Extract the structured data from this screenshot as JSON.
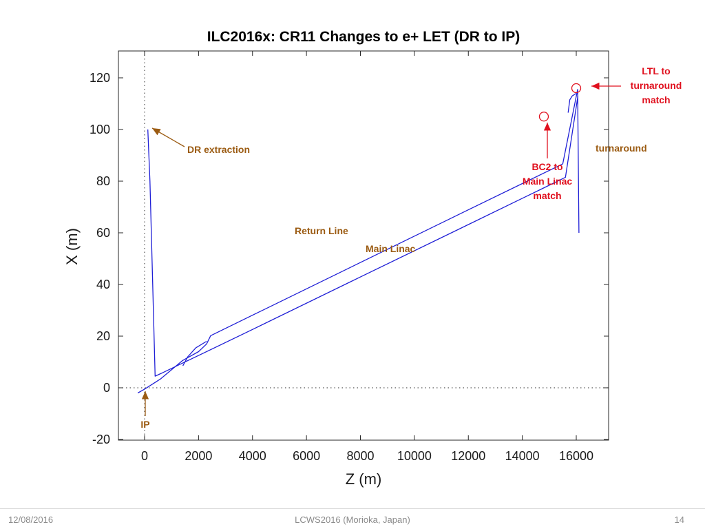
{
  "colors": {
    "trace": "#1f1fd6",
    "brown": "#9b5b12",
    "red": "#e0101e",
    "axis": "#262626"
  },
  "footer": {
    "date": "12/08/2016",
    "conference": "LCWS2016 (Morioka, Japan)",
    "page": "14"
  },
  "chart_data": {
    "type": "line",
    "title": "ILC2016x: CR11 Changes to e+ LET (DR to IP)",
    "xlabel": "Z (m)",
    "ylabel": "X (m)",
    "xlim": [
      -1000,
      17000
    ],
    "ylim": [
      -20,
      130
    ],
    "xticks": [
      0,
      2000,
      4000,
      6000,
      8000,
      10000,
      12000,
      14000,
      16000
    ],
    "yticks": [
      -20,
      0,
      20,
      40,
      60,
      80,
      100,
      120
    ],
    "grid": false,
    "reference_lines": [
      {
        "orientation": "vertical",
        "value": 0,
        "style": "dotted"
      },
      {
        "orientation": "horizontal",
        "value": 0,
        "style": "dotted"
      }
    ],
    "series": [
      {
        "points": [
          [
            -250,
            -2
          ],
          [
            0,
            -0.5
          ],
          [
            300,
            1.5
          ],
          [
            600,
            3.5
          ],
          [
            1000,
            7
          ],
          [
            1400,
            10.5
          ],
          [
            2000,
            14
          ],
          [
            2300,
            17
          ],
          [
            2450,
            20.2
          ],
          [
            4000,
            28.1
          ],
          [
            8000,
            48.5
          ],
          [
            12000,
            68.9
          ],
          [
            15500,
            86.7
          ],
          [
            16050,
            115.5
          ],
          [
            16100,
            60
          ]
        ]
      },
      {
        "points": [
          [
            120,
            100
          ],
          [
            200,
            80
          ],
          [
            300,
            40
          ],
          [
            390,
            4.5
          ],
          [
            600,
            5.5
          ],
          [
            1200,
            8.5
          ],
          [
            2000,
            12.5
          ],
          [
            4000,
            22.6
          ],
          [
            8000,
            42.9
          ],
          [
            12000,
            63.2
          ],
          [
            14760,
            77.2
          ],
          [
            15600,
            81.5
          ],
          [
            16060,
            113
          ]
        ]
      },
      {
        "points": [
          [
            1420,
            8.5
          ],
          [
            1600,
            12
          ],
          [
            1900,
            15.5
          ],
          [
            2300,
            18
          ]
        ]
      },
      {
        "points": [
          [
            15700,
            106.5
          ],
          [
            15760,
            111.5
          ],
          [
            15850,
            113
          ],
          [
            16000,
            114
          ]
        ]
      }
    ],
    "markers": [
      {
        "label": "LTL to turnaround match",
        "x": 16000,
        "y": 116
      },
      {
        "label": "BC2 to Main Linac match",
        "x": 14800,
        "y": 105
      }
    ],
    "annotations": {
      "dr_extraction": {
        "text": "DR extraction",
        "x": 100,
        "y": 101
      },
      "ip": {
        "text": "IP",
        "x": 0,
        "y": -1
      },
      "return_line": "Return Line",
      "main_linac": "Main Linac",
      "turnaround": "turnaround",
      "ltl": [
        "LTL to",
        "turnaround",
        "match"
      ],
      "bc2": [
        "BC2 to",
        "Main Linac",
        "match"
      ]
    }
  }
}
